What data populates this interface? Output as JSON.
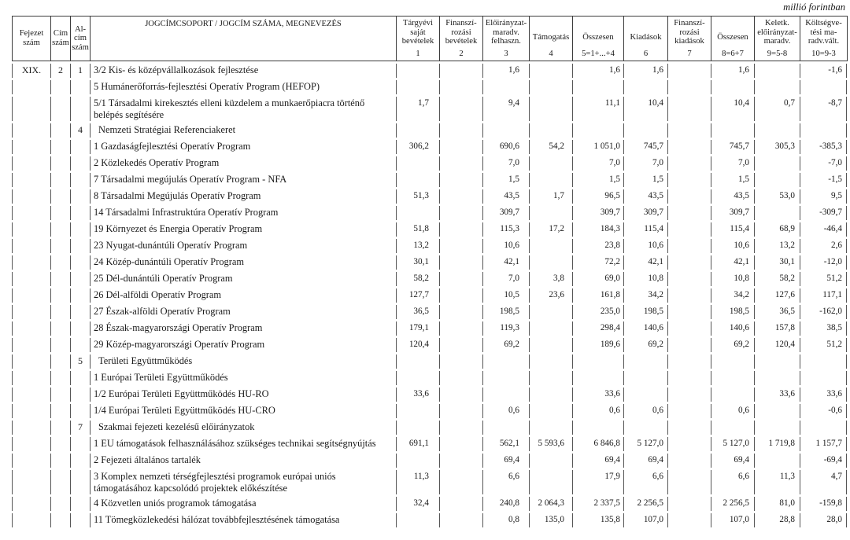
{
  "unit_note": "millió forintban",
  "table": {
    "header": {
      "columns": [
        {
          "lines": [
            "Fejezet",
            "szám"
          ],
          "num": ""
        },
        {
          "lines": [
            "Cím",
            "szám"
          ],
          "num": ""
        },
        {
          "lines": [
            "Al-",
            "cím",
            "szám"
          ],
          "num": ""
        },
        {
          "lines": [
            "JOGCÍMCSOPORT / JOGCÍM SZÁMA, MEGNEVEZÉS"
          ],
          "num": ""
        },
        {
          "lines": [
            "Tárgyévi",
            "saját",
            "bevételek"
          ],
          "num": "1"
        },
        {
          "lines": [
            "Finanszí-",
            "rozási",
            "bevételek"
          ],
          "num": "2"
        },
        {
          "lines": [
            "Előirányzat-",
            "maradv.",
            "felhaszn."
          ],
          "num": "3"
        },
        {
          "lines": [
            "Támogatás"
          ],
          "num": "4"
        },
        {
          "lines": [
            "Összesen"
          ],
          "num": "5=1+...+4"
        },
        {
          "lines": [
            "Kiadások"
          ],
          "num": "6"
        },
        {
          "lines": [
            "Finanszí-",
            "rozási",
            "kiadások"
          ],
          "num": "7"
        },
        {
          "lines": [
            "Összesen"
          ],
          "num": "8=6+7"
        },
        {
          "lines": [
            "Keletk.",
            "előirányzat-",
            "maradv."
          ],
          "num": "9=5-8"
        },
        {
          "lines": [
            "Költségve-",
            "tési ma-",
            "radv.vált."
          ],
          "num": "10=9-3"
        }
      ]
    },
    "rows": [
      {
        "fejezet": "XIX.",
        "cim": "2",
        "alcim": "1",
        "indent": false,
        "name": "3/2 Kis- és középvállalkozások fejlesztése",
        "values": [
          "",
          "",
          "1,6",
          "",
          "1,6",
          "1,6",
          "",
          "1,6",
          "",
          "-1,6"
        ]
      },
      {
        "fejezet": "",
        "cim": "",
        "alcim": "",
        "indent": false,
        "name": "5 Humánerőforrás-fejlesztési Operatív Program (HEFOP)",
        "values": [
          "",
          "",
          "",
          "",
          "",
          "",
          "",
          "",
          "",
          ""
        ]
      },
      {
        "fejezet": "",
        "cim": "",
        "alcim": "",
        "indent": false,
        "name": "5/1 Társadalmi kirekesztés elleni küzdelem a munkaerőpiacra történő belépés segítésére",
        "values": [
          "1,7",
          "",
          "9,4",
          "",
          "11,1",
          "10,4",
          "",
          "10,4",
          "0,7",
          "-8,7"
        ]
      },
      {
        "fejezet": "",
        "cim": "",
        "alcim": "4",
        "indent": true,
        "name": "Nemzeti Stratégiai Referenciakeret",
        "values": [
          "",
          "",
          "",
          "",
          "",
          "",
          "",
          "",
          "",
          ""
        ]
      },
      {
        "fejezet": "",
        "cim": "",
        "alcim": "",
        "indent": false,
        "name": "1 Gazdaságfejlesztési Operatív Program",
        "values": [
          "306,2",
          "",
          "690,6",
          "54,2",
          "1 051,0",
          "745,7",
          "",
          "745,7",
          "305,3",
          "-385,3"
        ]
      },
      {
        "fejezet": "",
        "cim": "",
        "alcim": "",
        "indent": false,
        "name": "2 Közlekedés Operatív Program",
        "values": [
          "",
          "",
          "7,0",
          "",
          "7,0",
          "7,0",
          "",
          "7,0",
          "",
          "-7,0"
        ]
      },
      {
        "fejezet": "",
        "cim": "",
        "alcim": "",
        "indent": false,
        "name": "7 Társadalmi megújulás Operatív Program - NFA",
        "values": [
          "",
          "",
          "1,5",
          "",
          "1,5",
          "1,5",
          "",
          "1,5",
          "",
          "-1,5"
        ]
      },
      {
        "fejezet": "",
        "cim": "",
        "alcim": "",
        "indent": false,
        "name": "8 Társadalmi Megújulás Operatív Program",
        "values": [
          "51,3",
          "",
          "43,5",
          "1,7",
          "96,5",
          "43,5",
          "",
          "43,5",
          "53,0",
          "9,5"
        ]
      },
      {
        "fejezet": "",
        "cim": "",
        "alcim": "",
        "indent": false,
        "name": "14 Társadalmi Infrastruktúra Operatív Program",
        "values": [
          "",
          "",
          "309,7",
          "",
          "309,7",
          "309,7",
          "",
          "309,7",
          "",
          "-309,7"
        ]
      },
      {
        "fejezet": "",
        "cim": "",
        "alcim": "",
        "indent": false,
        "name": "19 Környezet és Energia Operatív Program",
        "values": [
          "51,8",
          "",
          "115,3",
          "17,2",
          "184,3",
          "115,4",
          "",
          "115,4",
          "68,9",
          "-46,4"
        ]
      },
      {
        "fejezet": "",
        "cim": "",
        "alcim": "",
        "indent": false,
        "name": "23 Nyugat-dunántúli Operatív Program",
        "values": [
          "13,2",
          "",
          "10,6",
          "",
          "23,8",
          "10,6",
          "",
          "10,6",
          "13,2",
          "2,6"
        ]
      },
      {
        "fejezet": "",
        "cim": "",
        "alcim": "",
        "indent": false,
        "name": "24 Közép-dunántúli Operatív Program",
        "values": [
          "30,1",
          "",
          "42,1",
          "",
          "72,2",
          "42,1",
          "",
          "42,1",
          "30,1",
          "-12,0"
        ]
      },
      {
        "fejezet": "",
        "cim": "",
        "alcim": "",
        "indent": false,
        "name": "25 Dél-dunántúli Operatív Program",
        "values": [
          "58,2",
          "",
          "7,0",
          "3,8",
          "69,0",
          "10,8",
          "",
          "10,8",
          "58,2",
          "51,2"
        ]
      },
      {
        "fejezet": "",
        "cim": "",
        "alcim": "",
        "indent": false,
        "name": "26 Dél-alföldi Operatív Program",
        "values": [
          "127,7",
          "",
          "10,5",
          "23,6",
          "161,8",
          "34,2",
          "",
          "34,2",
          "127,6",
          "117,1"
        ]
      },
      {
        "fejezet": "",
        "cim": "",
        "alcim": "",
        "indent": false,
        "name": "27 Észak-alföldi Operatív Program",
        "values": [
          "36,5",
          "",
          "198,5",
          "",
          "235,0",
          "198,5",
          "",
          "198,5",
          "36,5",
          "-162,0"
        ]
      },
      {
        "fejezet": "",
        "cim": "",
        "alcim": "",
        "indent": false,
        "name": "28 Észak-magyarországi Operatív Program",
        "values": [
          "179,1",
          "",
          "119,3",
          "",
          "298,4",
          "140,6",
          "",
          "140,6",
          "157,8",
          "38,5"
        ]
      },
      {
        "fejezet": "",
        "cim": "",
        "alcim": "",
        "indent": false,
        "name": "29 Közép-magyarországi Operatív Program",
        "values": [
          "120,4",
          "",
          "69,2",
          "",
          "189,6",
          "69,2",
          "",
          "69,2",
          "120,4",
          "51,2"
        ]
      },
      {
        "fejezet": "",
        "cim": "",
        "alcim": "5",
        "indent": true,
        "name": "Területi Együttműködés",
        "values": [
          "",
          "",
          "",
          "",
          "",
          "",
          "",
          "",
          "",
          ""
        ]
      },
      {
        "fejezet": "",
        "cim": "",
        "alcim": "",
        "indent": false,
        "name": "1 Európai Területi Együttműködés",
        "values": [
          "",
          "",
          "",
          "",
          "",
          "",
          "",
          "",
          "",
          ""
        ]
      },
      {
        "fejezet": "",
        "cim": "",
        "alcim": "",
        "indent": false,
        "name": "1/2 Európai Területi Együttműködés HU-RO",
        "values": [
          "33,6",
          "",
          "",
          "",
          "33,6",
          "",
          "",
          "",
          "33,6",
          "33,6"
        ]
      },
      {
        "fejezet": "",
        "cim": "",
        "alcim": "",
        "indent": false,
        "name": "1/4 Európai Területi Együttműködés HU-CRO",
        "values": [
          "",
          "",
          "0,6",
          "",
          "0,6",
          "0,6",
          "",
          "0,6",
          "",
          "-0,6"
        ]
      },
      {
        "fejezet": "",
        "cim": "",
        "alcim": "7",
        "indent": true,
        "name": "Szakmai fejezeti kezelésű előirányzatok",
        "values": [
          "",
          "",
          "",
          "",
          "",
          "",
          "",
          "",
          "",
          ""
        ]
      },
      {
        "fejezet": "",
        "cim": "",
        "alcim": "",
        "indent": false,
        "name": "1 EU támogatások felhasználásához szükséges technikai segítségnyújtás",
        "values": [
          "691,1",
          "",
          "562,1",
          "5 593,6",
          "6 846,8",
          "5 127,0",
          "",
          "5 127,0",
          "1 719,8",
          "1 157,7"
        ]
      },
      {
        "fejezet": "",
        "cim": "",
        "alcim": "",
        "indent": false,
        "name": "2 Fejezeti általános tartalék",
        "values": [
          "",
          "",
          "69,4",
          "",
          "69,4",
          "69,4",
          "",
          "69,4",
          "",
          "-69,4"
        ]
      },
      {
        "fejezet": "",
        "cim": "",
        "alcim": "",
        "indent": false,
        "name": "3 Komplex nemzeti térségfejlesztési programok európai uniós támogatásához kapcsolódó projektek előkészítése",
        "values": [
          "11,3",
          "",
          "6,6",
          "",
          "17,9",
          "6,6",
          "",
          "6,6",
          "11,3",
          "4,7"
        ]
      },
      {
        "fejezet": "",
        "cim": "",
        "alcim": "",
        "indent": false,
        "name": "4 Közvetlen uniós programok támogatása",
        "values": [
          "32,4",
          "",
          "240,8",
          "2 064,3",
          "2 337,5",
          "2 256,5",
          "",
          "2 256,5",
          "81,0",
          "-159,8"
        ]
      },
      {
        "fejezet": "",
        "cim": "",
        "alcim": "",
        "indent": false,
        "name": "11 Tömegközlekedési hálózat továbbfejlesztésének támogatása",
        "values": [
          "",
          "",
          "0,8",
          "135,0",
          "135,8",
          "107,0",
          "",
          "107,0",
          "28,8",
          "28,0"
        ]
      }
    ]
  }
}
